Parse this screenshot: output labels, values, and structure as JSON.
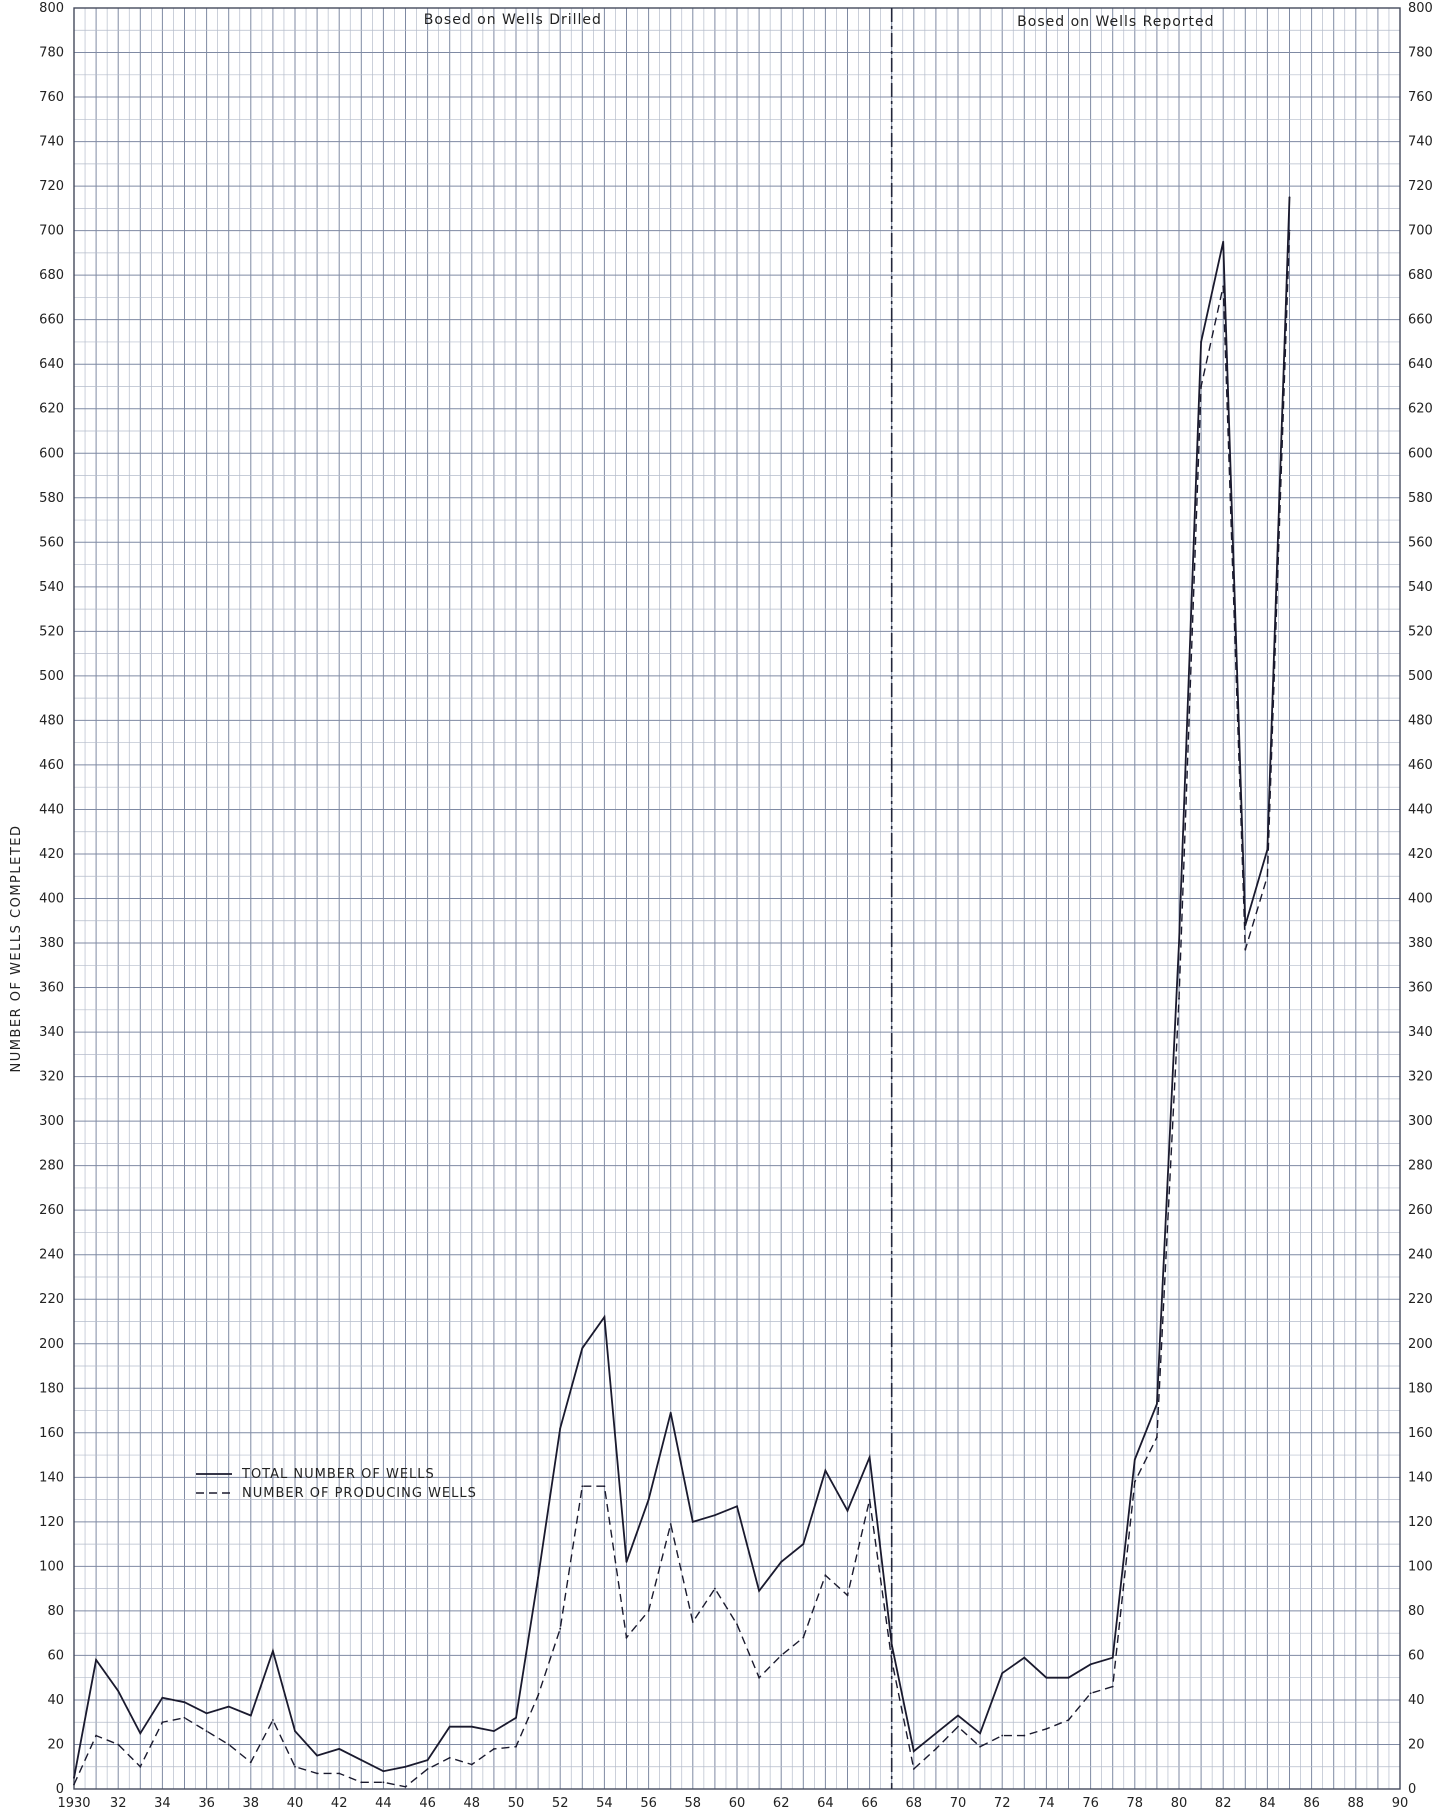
{
  "chart_data": {
    "type": "line",
    "title": "",
    "xlabel": "",
    "ylabel": "NUMBER OF WELLS COMPLETED",
    "xlim": [
      1930,
      1990
    ],
    "ylim": [
      0,
      800
    ],
    "grid": true,
    "legend_position": "bottom-left",
    "section_divider_year": 1967,
    "sections": [
      {
        "label": "Bosed on Wells Drilled",
        "x_from": 1930,
        "x_to": 1967
      },
      {
        "label": "Bosed on Wells Reported",
        "x_from": 1967,
        "x_to": 1990
      }
    ],
    "x_tick_values": [
      1930,
      1932,
      1934,
      1936,
      1938,
      1940,
      1942,
      1944,
      1946,
      1948,
      1950,
      1952,
      1954,
      1956,
      1958,
      1960,
      1962,
      1964,
      1966,
      1968,
      1970,
      1972,
      1974,
      1976,
      1978,
      1980,
      1982,
      1984,
      1986,
      1988,
      1990
    ],
    "x_tick_labels": [
      "1930",
      "32",
      "34",
      "36",
      "38",
      "40",
      "42",
      "44",
      "46",
      "48",
      "50",
      "52",
      "54",
      "56",
      "58",
      "60",
      "62",
      "64",
      "66",
      "68",
      "70",
      "72",
      "74",
      "76",
      "78",
      "80",
      "82",
      "84",
      "86",
      "88",
      "90"
    ],
    "y_ticks": [
      0,
      20,
      40,
      60,
      80,
      100,
      120,
      140,
      160,
      180,
      200,
      220,
      240,
      260,
      280,
      300,
      320,
      340,
      360,
      380,
      400,
      420,
      440,
      460,
      480,
      500,
      520,
      540,
      560,
      580,
      600,
      620,
      640,
      660,
      680,
      700,
      720,
      740,
      760,
      780,
      800
    ],
    "series": [
      {
        "name": "TOTAL NUMBER OF WELLS",
        "style": "solid",
        "color": "#1a1a2e",
        "x": [
          1930,
          1931,
          1932,
          1933,
          1934,
          1935,
          1936,
          1937,
          1938,
          1939,
          1940,
          1941,
          1942,
          1943,
          1944,
          1945,
          1946,
          1947,
          1948,
          1949,
          1950,
          1951,
          1952,
          1953,
          1954,
          1955,
          1956,
          1957,
          1958,
          1959,
          1960,
          1961,
          1962,
          1963,
          1964,
          1965,
          1966,
          1967,
          1968,
          1969,
          1970,
          1971,
          1972,
          1973,
          1974,
          1975,
          1976,
          1977,
          1978,
          1979,
          1980,
          1981,
          1982,
          1983,
          1984,
          1985
        ],
        "values": [
          5,
          58,
          44,
          25,
          41,
          39,
          34,
          37,
          33,
          62,
          26,
          15,
          18,
          13,
          8,
          10,
          13,
          28,
          28,
          26,
          32,
          95,
          162,
          198,
          212,
          102,
          130,
          169,
          120,
          123,
          127,
          89,
          102,
          110,
          143,
          125,
          149,
          65,
          17,
          25,
          33,
          25,
          52,
          59,
          50,
          50,
          56,
          59,
          148,
          173,
          380,
          650,
          695,
          388,
          422,
          715
        ]
      },
      {
        "name": "NUMBER OF PRODUCING WELLS",
        "style": "dashed",
        "color": "#1a1a2e",
        "x": [
          1930,
          1931,
          1932,
          1933,
          1934,
          1935,
          1936,
          1937,
          1938,
          1939,
          1940,
          1941,
          1942,
          1943,
          1944,
          1945,
          1946,
          1947,
          1948,
          1949,
          1950,
          1951,
          1952,
          1953,
          1954,
          1955,
          1956,
          1957,
          1958,
          1959,
          1960,
          1961,
          1962,
          1963,
          1964,
          1965,
          1966,
          1967,
          1968,
          1969,
          1970,
          1971,
          1972,
          1973,
          1974,
          1975,
          1976,
          1977,
          1978,
          1979,
          1980,
          1981,
          1982,
          1983,
          1984,
          1985
        ],
        "values": [
          2,
          24,
          20,
          10,
          30,
          32,
          26,
          20,
          12,
          31,
          10,
          7,
          7,
          3,
          3,
          1,
          9,
          14,
          11,
          18,
          19,
          42,
          72,
          136,
          136,
          68,
          80,
          119,
          75,
          90,
          74,
          50,
          60,
          68,
          96,
          87,
          130,
          58,
          9,
          18,
          28,
          19,
          24,
          24,
          27,
          31,
          43,
          46,
          138,
          158,
          355,
          630,
          675,
          377,
          410,
          700
        ]
      }
    ]
  }
}
